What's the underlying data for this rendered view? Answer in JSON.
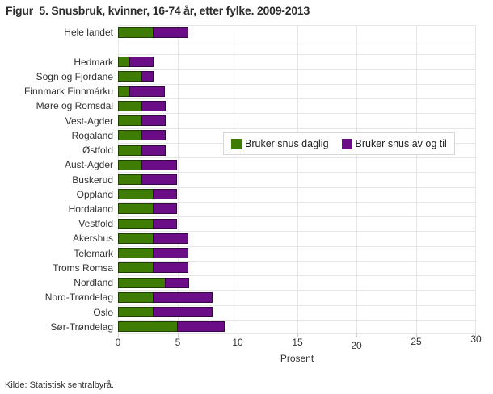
{
  "title": "Figur  5. Snusbruk, kvinner, 16-74 år, etter fylke. 2009-2013",
  "source": "Kilde: Statistisk sentralbyrå.",
  "legend": {
    "items": [
      {
        "label": "Bruker snus daglig",
        "color": "#3e7c04"
      },
      {
        "label": "Bruker snus av og til",
        "color": "#6b0d86"
      }
    ]
  },
  "colors": {
    "daily_green": "#3e7c04",
    "occasional_purple": "#6b0d86",
    "gridline": "#e6e6e6",
    "axis_text": "#333333"
  },
  "chart_data": {
    "type": "bar",
    "orientation": "horizontal",
    "stacked": true,
    "title": "Figur  5. Snusbruk, kvinner, 16-74 år, etter fylke. 2009-2013",
    "xlabel": "Prosent",
    "xlim": [
      0,
      30
    ],
    "xticks": [
      0,
      5,
      10,
      15,
      20,
      25,
      30
    ],
    "grid": true,
    "legend_position": "inside-middle-right",
    "gap_after_index": 0,
    "categories": [
      "Hele landet",
      "Hedmark",
      "Sogn og Fjordane",
      "Finnmark Finnmárku",
      "Møre og Romsdal",
      "Vest-Agder",
      "Rogaland",
      "Østfold",
      "Aust-Agder",
      "Buskerud",
      "Oppland",
      "Hordaland",
      "Vestfold",
      "Akershus",
      "Telemark",
      "Troms Romsa",
      "Nordland",
      "Nord-Trøndelag",
      "Oslo",
      "Sør-Trøndelag"
    ],
    "series": [
      {
        "name": "Bruker snus daglig",
        "color": "#3e7c04",
        "values": [
          3,
          1,
          2,
          1,
          2,
          2,
          2,
          2,
          2,
          2,
          3,
          3,
          3,
          3,
          3,
          3,
          4,
          3,
          3,
          5
        ]
      },
      {
        "name": "Bruker snus av og til",
        "color": "#6b0d86",
        "values": [
          3,
          2,
          1,
          3,
          2,
          2,
          2,
          2,
          3,
          3,
          2,
          2,
          2,
          3,
          3,
          3,
          2,
          5,
          5,
          4
        ]
      }
    ]
  }
}
